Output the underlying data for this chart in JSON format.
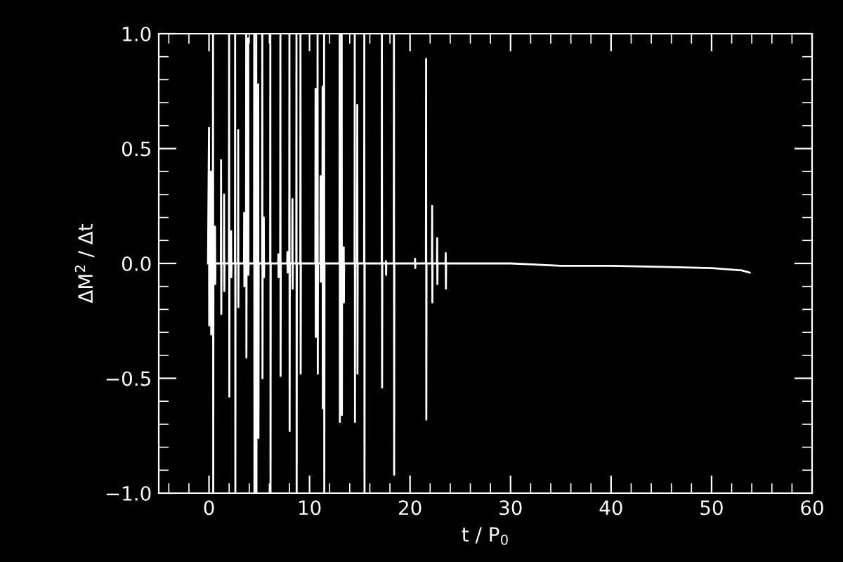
{
  "chart_data": {
    "type": "line",
    "xlabel": "t / P$_{0}$",
    "ylabel": "ΔM$^{2}$ / Δt",
    "xlim": [
      -5,
      60
    ],
    "ylim": [
      -1.0,
      1.0
    ],
    "xticks": [
      0,
      10,
      20,
      30,
      40,
      50,
      60
    ],
    "yticks": [
      {
        "value": -1.0,
        "label": "−1.0"
      },
      {
        "value": -0.5,
        "label": "−0.5"
      },
      {
        "value": 0.0,
        "label": "0.0"
      },
      {
        "value": 0.5,
        "label": "0.5"
      },
      {
        "value": 1.0,
        "label": "1.0"
      }
    ],
    "grid": false,
    "legend": false,
    "marker": "none",
    "line_style": "solid",
    "series": [
      {
        "color": "#ffffff",
        "x": [
          -0.1,
          0.0,
          0.02,
          0.04,
          0.18,
          0.2,
          0.22,
          0.24,
          0.38,
          0.4,
          0.42,
          0.44,
          0.58,
          0.6,
          0.62,
          0.64,
          1.18,
          1.2,
          1.22,
          1.24,
          1.48,
          1.5,
          1.52,
          1.54,
          1.98,
          2.0,
          2.02,
          2.04,
          2.18,
          2.2,
          2.22,
          2.24,
          2.58,
          2.6,
          2.62,
          2.64,
          2.88,
          2.9,
          2.92,
          2.94,
          3.48,
          3.5,
          3.52,
          3.54,
          3.68,
          3.7,
          3.72,
          3.74,
          3.88,
          3.9,
          3.92,
          3.94,
          4.48,
          4.5,
          4.52,
          4.54,
          4.68,
          4.7,
          4.72,
          4.74,
          4.88,
          4.9,
          4.92,
          4.94,
          5.28,
          5.3,
          5.32,
          5.34,
          5.43,
          5.45,
          5.47,
          5.49,
          6.08,
          6.1,
          6.12,
          6.14,
          6.88,
          6.9,
          6.92,
          6.94,
          7.08,
          7.1,
          7.12,
          7.14,
          7.78,
          7.8,
          7.82,
          7.84,
          7.98,
          8.0,
          8.02,
          8.04,
          8.28,
          8.3,
          8.32,
          8.34,
          8.68,
          8.7,
          8.72,
          8.74,
          9.08,
          9.1,
          9.12,
          9.14,
          10.58,
          10.6,
          10.62,
          10.64,
          10.78,
          10.8,
          10.82,
          10.84,
          11.08,
          11.1,
          11.12,
          11.14,
          11.28,
          11.3,
          11.32,
          11.34,
          11.43,
          11.45,
          11.47,
          11.49,
          12.98,
          13.0,
          13.02,
          13.04,
          13.18,
          13.2,
          13.22,
          13.24,
          13.38,
          13.4,
          13.42,
          13.44,
          14.48,
          14.5,
          14.52,
          14.54,
          14.73,
          14.75,
          14.77,
          14.79,
          15.43,
          15.45,
          15.47,
          15.49,
          17.18,
          17.2,
          17.22,
          17.24,
          17.58,
          17.6,
          17.62,
          17.64,
          18.38,
          18.4,
          18.42,
          18.44,
          20.48,
          20.5,
          20.52,
          20.54,
          21.58,
          21.6,
          21.62,
          21.64,
          22.18,
          22.2,
          22.22,
          22.24,
          22.68,
          22.7,
          22.72,
          22.74,
          23.53,
          23.55,
          23.57,
          23.59,
          30.0,
          35.0,
          40.0,
          45.0,
          50.0,
          53.0,
          53.8
        ],
        "values": [
          0.0,
          0.59,
          -0.27,
          0.0,
          0.0,
          0.4,
          -0.31,
          0.0,
          0.0,
          1.0,
          -1.0,
          0.0,
          0.0,
          0.16,
          -0.09,
          0.0,
          0.0,
          0.45,
          -0.22,
          0.0,
          0.0,
          0.3,
          -0.12,
          0.0,
          0.0,
          1.0,
          -0.58,
          0.0,
          0.0,
          0.14,
          -0.06,
          0.0,
          0.0,
          1.0,
          -1.0,
          0.0,
          0.0,
          0.58,
          -0.19,
          0.0,
          0.0,
          0.22,
          -0.1,
          0.0,
          0.0,
          1.0,
          -0.41,
          0.0,
          0.0,
          0.98,
          -0.05,
          0.0,
          0.0,
          1.0,
          -1.0,
          0.0,
          0.0,
          1.0,
          -1.0,
          0.0,
          0.0,
          0.78,
          -0.76,
          0.0,
          0.0,
          1.0,
          -0.5,
          0.0,
          0.0,
          0.2,
          -0.06,
          0.0,
          0.0,
          1.0,
          -1.0,
          0.0,
          0.0,
          0.04,
          -0.06,
          0.0,
          0.0,
          1.0,
          -0.49,
          0.0,
          0.0,
          0.05,
          -0.04,
          0.0,
          0.0,
          1.0,
          -0.73,
          0.0,
          0.0,
          0.28,
          -0.11,
          0.0,
          0.0,
          1.0,
          -1.0,
          0.0,
          0.0,
          1.0,
          -0.48,
          0.0,
          0.0,
          0.76,
          -0.32,
          0.0,
          0.0,
          1.0,
          -0.48,
          0.0,
          0.0,
          0.38,
          -0.08,
          0.0,
          0.0,
          0.77,
          -0.63,
          0.0,
          0.0,
          1.0,
          -1.0,
          0.0,
          0.0,
          1.0,
          -0.69,
          0.0,
          0.0,
          1.0,
          -0.66,
          0.0,
          0.0,
          0.07,
          -0.17,
          0.0,
          0.0,
          1.0,
          -0.69,
          0.0,
          0.0,
          0.69,
          -0.48,
          0.0,
          0.0,
          1.0,
          -1.0,
          0.0,
          0.0,
          1.0,
          -0.54,
          0.0,
          0.0,
          0.01,
          -0.05,
          0.0,
          0.0,
          1.0,
          -0.92,
          0.0,
          0.0,
          0.02,
          -0.02,
          0.0,
          0.0,
          0.89,
          -0.68,
          0.0,
          0.0,
          0.25,
          -0.17,
          0.0,
          0.0,
          0.11,
          -0.09,
          0.0,
          0.0,
          0.045,
          -0.11,
          0.0,
          0.0,
          -0.01,
          -0.01,
          -0.015,
          -0.02,
          -0.03,
          -0.04
        ]
      }
    ]
  }
}
